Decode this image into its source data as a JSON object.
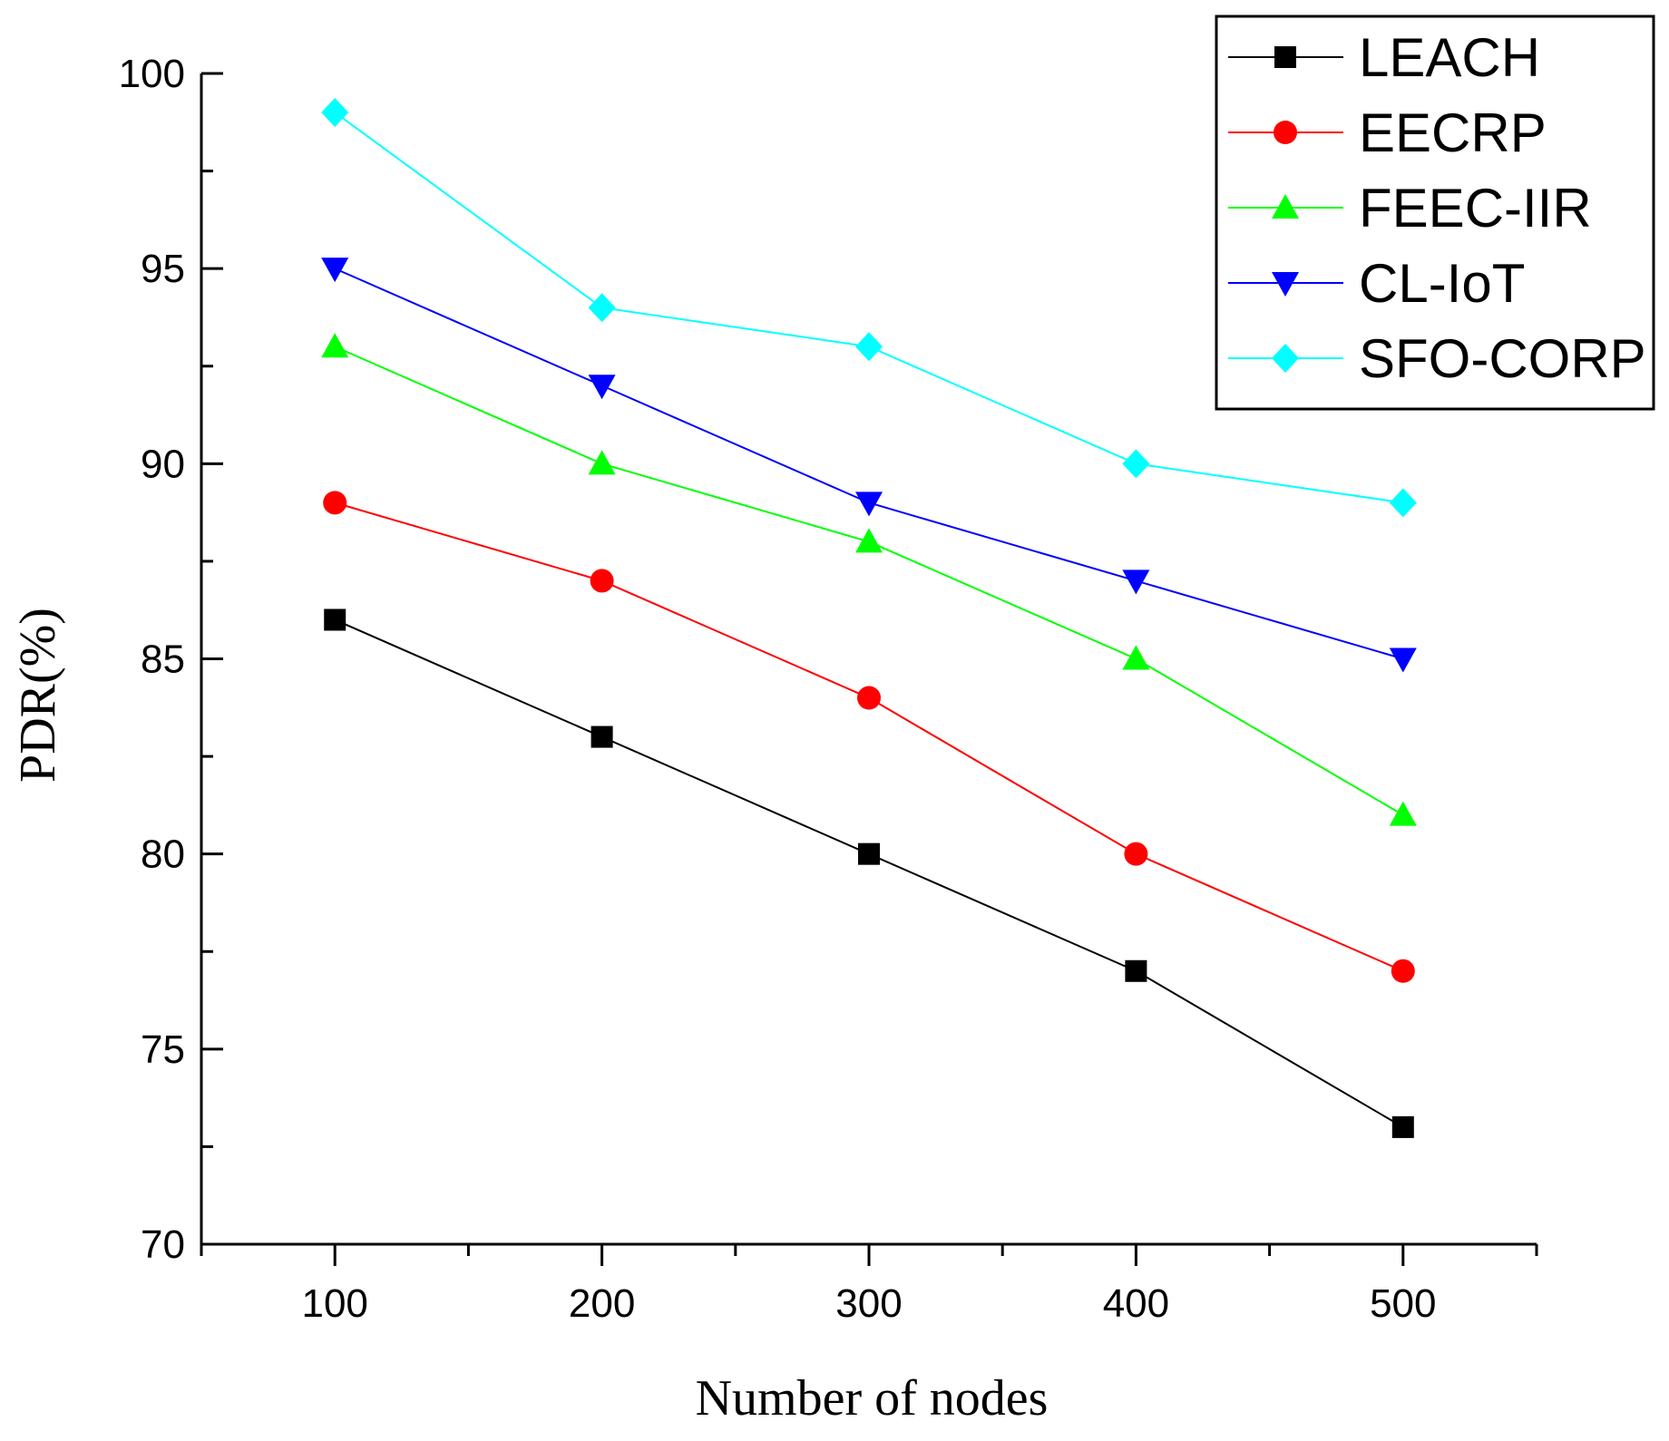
{
  "chart_data": {
    "type": "line",
    "title": "",
    "xlabel": "Number of nodes",
    "ylabel": "PDR(%)",
    "x": [
      100,
      200,
      300,
      400,
      500
    ],
    "xlim": [
      50,
      550
    ],
    "ylim": [
      70,
      100
    ],
    "x_ticks": [
      100,
      200,
      300,
      400,
      500
    ],
    "y_ticks": [
      70,
      75,
      80,
      85,
      90,
      95,
      100
    ],
    "grid": false,
    "legend_position": "top-right",
    "series": [
      {
        "name": "LEACH",
        "color": "#000000",
        "marker": "square",
        "values": [
          86,
          83,
          80,
          77,
          73
        ]
      },
      {
        "name": "EECRP",
        "color": "#ff0000",
        "marker": "circle",
        "values": [
          89,
          87,
          84,
          80,
          77
        ]
      },
      {
        "name": "FEEC-IIR",
        "color": "#00ff00",
        "marker": "triangle-up",
        "values": [
          93,
          90,
          88,
          85,
          81
        ]
      },
      {
        "name": "CL-IoT",
        "color": "#0000ff",
        "marker": "triangle-down",
        "values": [
          95,
          92,
          89,
          87,
          85
        ]
      },
      {
        "name": "SFO-CORP",
        "color": "#00ffff",
        "marker": "diamond",
        "values": [
          99,
          94,
          93,
          90,
          89
        ]
      }
    ]
  }
}
